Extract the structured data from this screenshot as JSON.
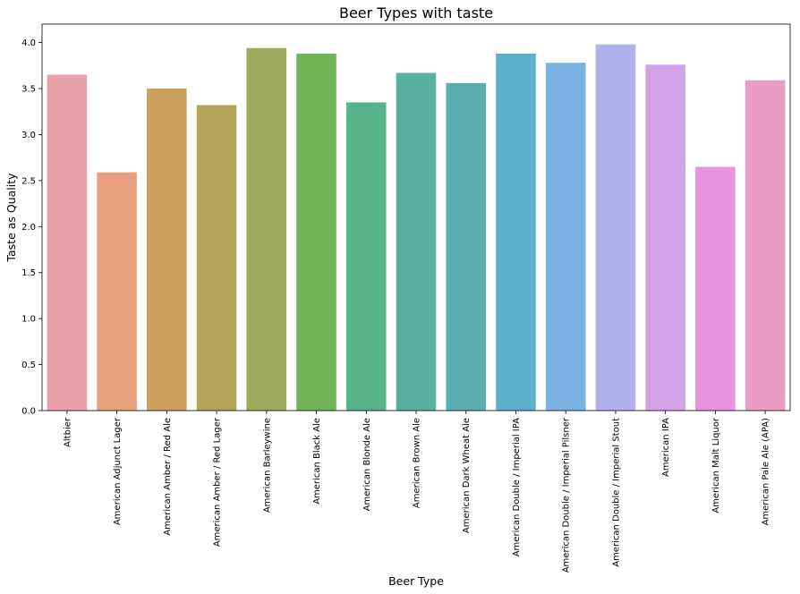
{
  "chart_data": {
    "type": "bar",
    "title": "Beer Types with taste",
    "xlabel": "Beer Type",
    "ylabel": "Taste as Quality",
    "ylim": [
      0,
      4.2
    ],
    "yticks": [
      "0.0",
      "0.5",
      "1.0",
      "1.5",
      "2.0",
      "2.5",
      "3.0",
      "3.5",
      "4.0"
    ],
    "grid": false,
    "categories": [
      "Altbier",
      "American Adjunct Lager",
      "American Amber / Red Ale",
      "American Amber / Red Lager",
      "American Barleywine",
      "American Black Ale",
      "American Blonde Ale",
      "American Brown Ale",
      "American Dark Wheat Ale",
      "American Double / Imperial IPA",
      "American Double / Imperial Pilsner",
      "American Double / Imperial Stout",
      "American IPA",
      "American Malt Liquor",
      "American Pale Ale (APA)"
    ],
    "values": [
      3.65,
      2.59,
      3.5,
      3.32,
      3.94,
      3.88,
      3.35,
      3.67,
      3.56,
      3.88,
      3.78,
      3.98,
      3.76,
      2.65,
      3.59
    ],
    "colors": [
      "#e9a0aa",
      "#e79f7d",
      "#cca05a",
      "#b2a55a",
      "#9aaa5a",
      "#6fb456",
      "#57b38a",
      "#58b09f",
      "#5aaeaf",
      "#5ab1c8",
      "#7ab3e2",
      "#b2b1ed",
      "#d3a2e9",
      "#e893e0",
      "#eb9cc3"
    ]
  }
}
